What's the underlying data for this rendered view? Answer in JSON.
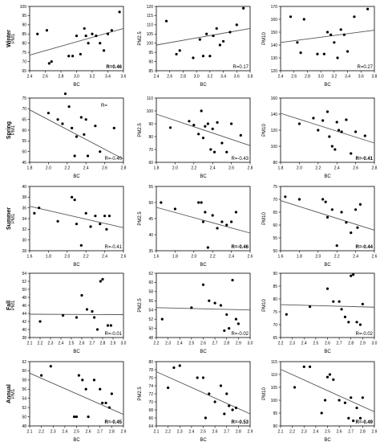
{
  "figure": {
    "row_labels": [
      "Winter",
      "Spring",
      "Summer",
      "Fall",
      "Annual"
    ],
    "colors": {
      "points": "#000000",
      "line": "#555555",
      "frame": "#000000"
    }
  },
  "chart_data": [
    {
      "type": "scatter",
      "row": "Winter",
      "xlabel": "BC",
      "ylabel": "PM1",
      "xlim": [
        2.4,
        3.6
      ],
      "ylim": [
        65,
        100
      ],
      "xticks": [
        "2.4",
        "2.6",
        "2.8",
        "3.0",
        "3.2",
        "3.4",
        "3.6"
      ],
      "yticks": [
        "65",
        "70",
        "75",
        "80",
        "85",
        "90",
        "95",
        "100"
      ],
      "x": [
        2.5,
        2.62,
        2.65,
        2.68,
        2.9,
        2.95,
        3.0,
        3.05,
        3.1,
        3.12,
        3.15,
        3.2,
        3.25,
        3.3,
        3.35,
        3.4,
        3.45,
        3.55
      ],
      "y": [
        85,
        87,
        69,
        70,
        73,
        73,
        84,
        74,
        88,
        84,
        80,
        85,
        84,
        80,
        76,
        85,
        87,
        97
      ],
      "trend": [
        73.5,
        88.0
      ],
      "r_label": "R=0.46",
      "r_bold": true
    },
    {
      "type": "scatter",
      "row": "Winter",
      "xlabel": "BC",
      "ylabel": "PM2.5",
      "xlim": [
        2.4,
        3.8
      ],
      "ylim": [
        85,
        120
      ],
      "xticks": [
        "2.4",
        "2.6",
        "2.8",
        "3.0",
        "3.2",
        "3.4",
        "3.6",
        "3.8"
      ],
      "yticks": [
        "85",
        "90",
        "95",
        "100",
        "105",
        "110",
        "115",
        "120"
      ],
      "x": [
        2.55,
        2.7,
        2.75,
        2.95,
        3.05,
        3.1,
        3.15,
        3.2,
        3.25,
        3.3,
        3.35,
        3.4,
        3.5,
        3.6,
        3.7
      ],
      "y": [
        112,
        94,
        96,
        92,
        102,
        93,
        105,
        93,
        104,
        108,
        99,
        101,
        106,
        110,
        119
      ],
      "trend": [
        99.0,
        108.0
      ],
      "r_label": "R=0.17",
      "r_bold": false
    },
    {
      "type": "scatter",
      "row": "Winter",
      "xlabel": "BC",
      "ylabel": "PM10",
      "xlim": [
        2.4,
        3.8
      ],
      "ylim": [
        120,
        170
      ],
      "xticks": [
        "2.4",
        "2.6",
        "2.8",
        "3.0",
        "3.2",
        "3.4",
        "3.6",
        "3.8"
      ],
      "yticks": [
        "120",
        "130",
        "140",
        "150",
        "160",
        "170"
      ],
      "x": [
        2.55,
        2.65,
        2.7,
        2.75,
        2.95,
        3.05,
        3.1,
        3.15,
        3.2,
        3.25,
        3.3,
        3.35,
        3.4,
        3.5,
        3.7
      ],
      "y": [
        162,
        142,
        134,
        160,
        133,
        133,
        150,
        148,
        142,
        130,
        152,
        148,
        135,
        162,
        168
      ],
      "trend": [
        142.0,
        151.5
      ],
      "r_label": "R=0.27",
      "r_bold": false
    },
    {
      "type": "scatter",
      "row": "Spring",
      "xlabel": "BC",
      "ylabel": "PM1",
      "xlim": [
        1.8,
        2.8
      ],
      "ylim": [
        45,
        75
      ],
      "xticks": [
        "1.8",
        "2.0",
        "2.2",
        "2.4",
        "2.6",
        "2.8"
      ],
      "yticks": [
        "45",
        "50",
        "55",
        "60",
        "65",
        "70",
        "75"
      ],
      "x": [
        2.0,
        2.1,
        2.15,
        2.18,
        2.22,
        2.25,
        2.28,
        2.3,
        2.35,
        2.38,
        2.4,
        2.42,
        2.5,
        2.55,
        2.7
      ],
      "y": [
        68,
        65,
        63,
        77,
        71,
        61,
        48,
        57,
        66,
        58,
        65,
        48,
        62,
        50,
        61
      ],
      "trend": [
        69.5,
        46.5
      ],
      "r_label": "R=-0.40",
      "r_bold": false,
      "r_extra": "R="
    },
    {
      "type": "scatter",
      "row": "Spring",
      "xlabel": "BC",
      "ylabel": "PM2.5",
      "xlim": [
        1.8,
        2.8
      ],
      "ylim": [
        60,
        110
      ],
      "xticks": [
        "1.8",
        "2.0",
        "2.2",
        "2.4",
        "2.6",
        "2.8"
      ],
      "yticks": [
        "60",
        "70",
        "80",
        "90",
        "100",
        "110"
      ],
      "x": [
        1.95,
        2.15,
        2.2,
        2.25,
        2.28,
        2.3,
        2.32,
        2.35,
        2.38,
        2.4,
        2.42,
        2.45,
        2.5,
        2.55,
        2.6,
        2.7
      ],
      "y": [
        87,
        92,
        89,
        82,
        100,
        79,
        88,
        90,
        70,
        86,
        68,
        91,
        75,
        68,
        90,
        81
      ],
      "trend": [
        97.5,
        73.0
      ],
      "r_label": "R=-0.43",
      "r_bold": false
    },
    {
      "type": "scatter",
      "row": "Spring",
      "xlabel": "BC",
      "ylabel": "PM10",
      "xlim": [
        1.8,
        2.8
      ],
      "ylim": [
        80,
        160
      ],
      "xticks": [
        "1.8",
        "2.0",
        "2.2",
        "2.4",
        "2.6",
        "2.8"
      ],
      "yticks": [
        "80",
        "100",
        "120",
        "140",
        "160"
      ],
      "x": [
        2.0,
        2.15,
        2.2,
        2.25,
        2.3,
        2.32,
        2.35,
        2.38,
        2.4,
        2.42,
        2.45,
        2.5,
        2.55,
        2.6,
        2.7
      ],
      "y": [
        128,
        135,
        120,
        132,
        143,
        112,
        100,
        96,
        130,
        120,
        118,
        133,
        91,
        118,
        113
      ],
      "trend": [
        141.0,
        104.0
      ],
      "r_label": "R=-0.41",
      "r_bold": true
    },
    {
      "type": "scatter",
      "row": "Summer",
      "xlabel": "BC",
      "ylabel": "PM1",
      "xlim": [
        1.6,
        2.6
      ],
      "ylim": [
        28,
        40
      ],
      "xticks": [
        "1.6",
        "1.8",
        "2.0",
        "2.2",
        "2.4",
        "2.6"
      ],
      "yticks": [
        "28",
        "30",
        "32",
        "34",
        "36",
        "38",
        "40"
      ],
      "x": [
        1.65,
        1.7,
        1.9,
        2.05,
        2.08,
        2.1,
        2.15,
        2.2,
        2.25,
        2.3,
        2.35,
        2.4,
        2.42,
        2.45
      ],
      "y": [
        35,
        36,
        33.5,
        38,
        37.5,
        33,
        29,
        35,
        32.5,
        34.5,
        33,
        34.5,
        32,
        34.5
      ],
      "trend": [
        36.3,
        32.3
      ],
      "r_label": "R=-0.41",
      "r_bold": false
    },
    {
      "type": "scatter",
      "row": "Summer",
      "xlabel": "BC",
      "ylabel": "PM2.5",
      "xlim": [
        1.6,
        2.6
      ],
      "ylim": [
        35,
        55
      ],
      "xticks": [
        "1.6",
        "1.8",
        "2.0",
        "2.2",
        "2.4",
        "2.6"
      ],
      "yticks": [
        "35",
        "40",
        "45",
        "50",
        "55"
      ],
      "x": [
        1.65,
        1.8,
        2.05,
        2.08,
        2.1,
        2.12,
        2.15,
        2.2,
        2.25,
        2.3,
        2.35,
        2.4,
        2.45
      ],
      "y": [
        50,
        48,
        50,
        50,
        44,
        47,
        36,
        46,
        42,
        44,
        43,
        44,
        47
      ],
      "trend": [
        48.5,
        40.5
      ],
      "r_label": "R=-0.46",
      "r_bold": true
    },
    {
      "type": "scatter",
      "row": "Summer",
      "xlabel": "BC",
      "ylabel": "PM10",
      "xlim": [
        1.6,
        2.6
      ],
      "ylim": [
        50,
        75
      ],
      "xticks": [
        "1.6",
        "1.8",
        "2.0",
        "2.2",
        "2.4",
        "2.6"
      ],
      "yticks": [
        "50",
        "55",
        "60",
        "65",
        "70",
        "75"
      ],
      "x": [
        1.65,
        1.8,
        2.05,
        2.08,
        2.1,
        2.15,
        2.2,
        2.25,
        2.3,
        2.35,
        2.4,
        2.42,
        2.45
      ],
      "y": [
        71,
        70,
        70,
        69,
        63,
        66,
        52,
        65,
        61,
        57,
        66,
        59,
        68
      ],
      "trend": [
        69.5,
        58.0
      ],
      "r_label": "R=-0.44",
      "r_bold": true
    },
    {
      "type": "scatter",
      "row": "Fall",
      "xlabel": "BC",
      "ylabel": "PM1",
      "xlim": [
        2.1,
        3.0
      ],
      "ylim": [
        38,
        54
      ],
      "xticks": [
        "2.1",
        "2.2",
        "2.3",
        "2.4",
        "2.5",
        "2.6",
        "2.7",
        "2.8",
        "2.9",
        "3.0"
      ],
      "yticks": [
        "38",
        "40",
        "42",
        "44",
        "46",
        "48",
        "50",
        "52",
        "54"
      ],
      "x": [
        2.2,
        2.42,
        2.55,
        2.6,
        2.65,
        2.7,
        2.72,
        2.75,
        2.78,
        2.8,
        2.85,
        2.88
      ],
      "y": [
        42,
        43.5,
        43,
        48.5,
        45,
        44.5,
        43,
        40,
        52,
        52.5,
        41,
        41
      ],
      "trend": [
        43.8,
        43.7
      ],
      "r_label": "R=-0.01",
      "r_bold": false
    },
    {
      "type": "scatter",
      "row": "Fall",
      "xlabel": "BC",
      "ylabel": "PM2.5",
      "xlim": [
        2.2,
        3.0
      ],
      "ylim": [
        48,
        62
      ],
      "xticks": [
        "2.2",
        "2.3",
        "2.4",
        "2.5",
        "2.6",
        "2.7",
        "2.8",
        "2.9",
        "3.0"
      ],
      "yticks": [
        "48",
        "50",
        "52",
        "54",
        "56",
        "58",
        "60",
        "62"
      ],
      "x": [
        2.25,
        2.5,
        2.6,
        2.65,
        2.7,
        2.75,
        2.78,
        2.8,
        2.82,
        2.85,
        2.88,
        2.9
      ],
      "y": [
        52,
        54.5,
        59.5,
        56,
        55.5,
        55,
        49.5,
        53,
        50,
        60.5,
        52,
        51
      ],
      "trend": [
        54.5,
        54.0
      ],
      "r_label": "R=-0.02",
      "r_bold": false
    },
    {
      "type": "scatter",
      "row": "Fall",
      "xlabel": "BC",
      "ylabel": "PM10",
      "xlim": [
        2.2,
        3.0
      ],
      "ylim": [
        65,
        90
      ],
      "xticks": [
        "2.2",
        "2.3",
        "2.4",
        "2.5",
        "2.6",
        "2.7",
        "2.8",
        "2.9",
        "3.0"
      ],
      "yticks": [
        "65",
        "70",
        "75",
        "80",
        "85",
        "90"
      ],
      "x": [
        2.25,
        2.45,
        2.6,
        2.65,
        2.7,
        2.72,
        2.75,
        2.78,
        2.8,
        2.82,
        2.85,
        2.88,
        2.9
      ],
      "y": [
        74,
        77,
        84,
        79,
        79,
        76,
        73,
        71,
        89,
        89.5,
        71,
        70,
        78
      ],
      "trend": [
        77.8,
        76.8
      ],
      "r_label": "R=-0.02",
      "r_bold": false
    },
    {
      "type": "scatter",
      "row": "Annual",
      "xlabel": "BC",
      "ylabel": "PM1",
      "xlim": [
        2.1,
        2.9
      ],
      "ylim": [
        48,
        62
      ],
      "xticks": [
        "2.1",
        "2.2",
        "2.3",
        "2.4",
        "2.5",
        "2.6",
        "2.7",
        "2.8",
        "2.9"
      ],
      "yticks": [
        "48",
        "50",
        "52",
        "54",
        "56",
        "58",
        "60",
        "62"
      ],
      "x": [
        2.2,
        2.28,
        2.48,
        2.5,
        2.52,
        2.55,
        2.58,
        2.6,
        2.65,
        2.7,
        2.72,
        2.75,
        2.78,
        2.8
      ],
      "y": [
        59,
        61,
        50,
        50,
        59,
        58,
        56,
        50,
        58,
        56,
        53,
        53,
        52,
        55
      ],
      "trend": [
        59.5,
        50.5
      ],
      "r_label": "R=-0.45",
      "r_bold": true
    },
    {
      "type": "scatter",
      "row": "Annual",
      "xlabel": "BC",
      "ylabel": "PM2.5",
      "xlim": [
        2.1,
        2.9
      ],
      "ylim": [
        64,
        80
      ],
      "xticks": [
        "2.1",
        "2.2",
        "2.3",
        "2.4",
        "2.5",
        "2.6",
        "2.7",
        "2.8",
        "2.9"
      ],
      "yticks": [
        "64",
        "66",
        "68",
        "70",
        "72",
        "74",
        "76",
        "78",
        "80"
      ],
      "x": [
        2.2,
        2.25,
        2.3,
        2.45,
        2.5,
        2.52,
        2.55,
        2.6,
        2.65,
        2.68,
        2.7,
        2.72,
        2.75,
        2.78
      ],
      "y": [
        73.5,
        78.5,
        79,
        76,
        76,
        66,
        72,
        70,
        74,
        67,
        72,
        69,
        68,
        68.5
      ],
      "trend": [
        77.5,
        67.0
      ],
      "r_label": "R=-0.53",
      "r_bold": true
    },
    {
      "type": "scatter",
      "row": "Annual",
      "xlabel": "BC",
      "ylabel": "PM10",
      "xlim": [
        2.1,
        2.9
      ],
      "ylim": [
        90,
        115
      ],
      "xticks": [
        "2.1",
        "2.2",
        "2.3",
        "2.4",
        "2.5",
        "2.6",
        "2.7",
        "2.8",
        "2.9"
      ],
      "yticks": [
        "90",
        "95",
        "100",
        "105",
        "110",
        "115"
      ],
      "x": [
        2.22,
        2.3,
        2.35,
        2.45,
        2.48,
        2.5,
        2.52,
        2.55,
        2.6,
        2.65,
        2.68,
        2.7,
        2.72,
        2.75,
        2.78,
        2.8
      ],
      "y": [
        105,
        113,
        113,
        95,
        100,
        109,
        110,
        108,
        100,
        99,
        93,
        101,
        92,
        97,
        93,
        101
      ],
      "trend": [
        112.0,
        95.5
      ],
      "r_label": "R=-0.49",
      "r_bold": true
    }
  ]
}
